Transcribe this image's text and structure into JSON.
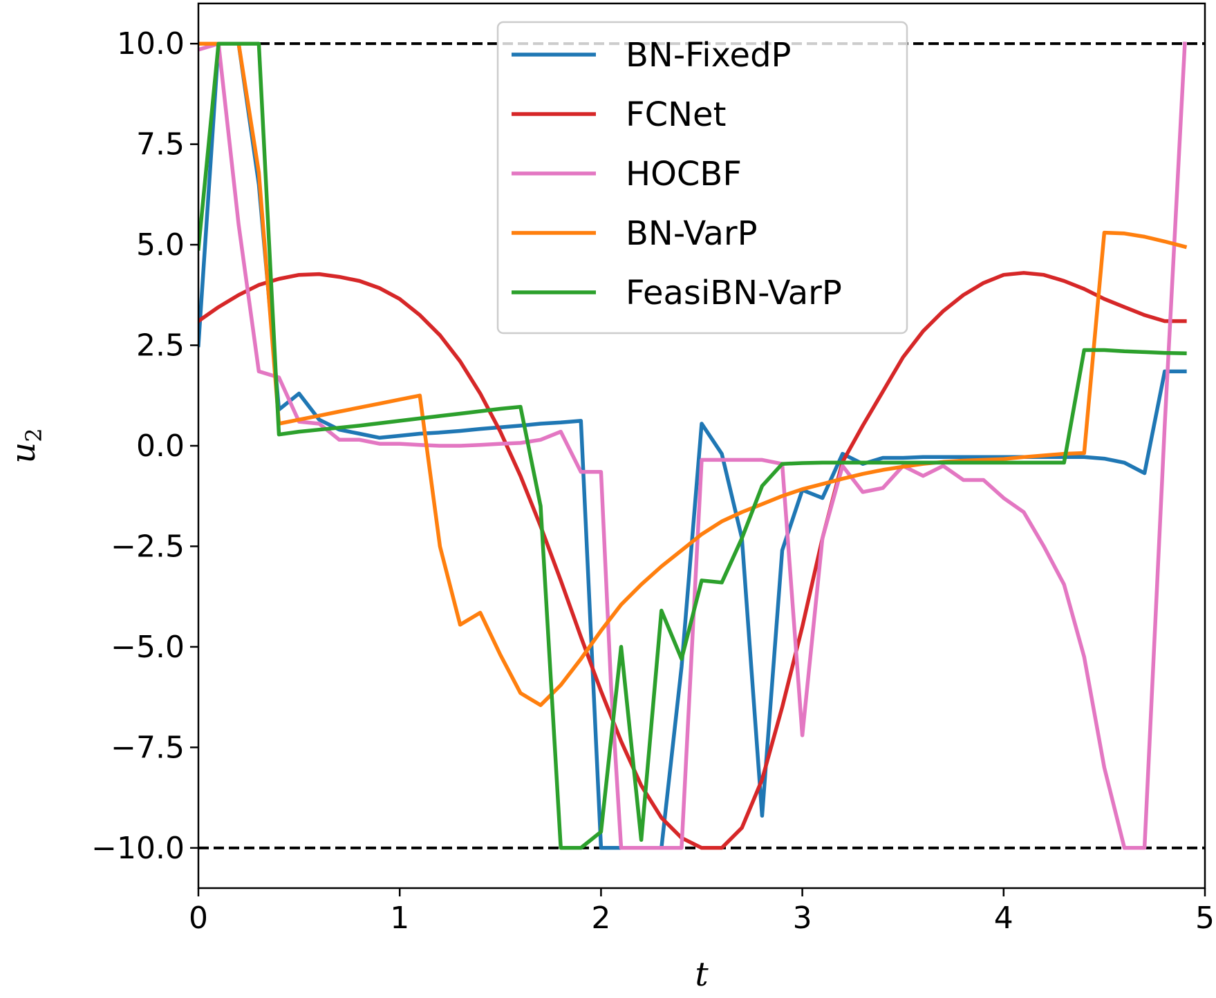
{
  "chart_data": {
    "type": "line",
    "xlabel": "t",
    "ylabel": "u",
    "ylabel_sub": "2",
    "xlim": [
      0,
      5
    ],
    "ylim": [
      -11,
      11
    ],
    "x_ticks": [
      0,
      1,
      2,
      3,
      4,
      5
    ],
    "x_tick_labels": [
      "0",
      "1",
      "2",
      "3",
      "4",
      "5"
    ],
    "y_ticks": [
      10.0,
      7.5,
      5.0,
      2.5,
      0.0,
      -2.5,
      -5.0,
      -7.5,
      -10.0
    ],
    "y_tick_labels": [
      "10.0",
      "7.5",
      "5.0",
      "2.5",
      "0.0",
      "−2.5",
      "−5.0",
      "−7.5",
      "−10.0"
    ],
    "reference_lines": [
      {
        "y": 10,
        "style": "dashed",
        "color": "#000000"
      },
      {
        "y": -10,
        "style": "dashed",
        "color": "#000000"
      }
    ],
    "legend_position": "top-center",
    "grid": false,
    "series": [
      {
        "name": "BN-FixedP",
        "color": "#1f77b4",
        "x": [
          0,
          0.1,
          0.2,
          0.3,
          0.4,
          0.5,
          0.6,
          0.7,
          0.8,
          0.9,
          1.0,
          1.1,
          1.2,
          1.3,
          1.4,
          1.5,
          1.6,
          1.7,
          1.8,
          1.9,
          2.0,
          2.1,
          2.2,
          2.3,
          2.4,
          2.5,
          2.6,
          2.7,
          2.8,
          2.9,
          3.0,
          3.1,
          3.2,
          3.3,
          3.4,
          3.5,
          3.6,
          3.7,
          3.8,
          3.9,
          4.0,
          4.1,
          4.2,
          4.3,
          4.4,
          4.5,
          4.6,
          4.7,
          4.8,
          4.9
        ],
        "y": [
          2.5,
          10,
          10,
          6.5,
          0.9,
          1.3,
          0.65,
          0.4,
          0.3,
          0.2,
          0.25,
          0.3,
          0.33,
          0.37,
          0.42,
          0.46,
          0.5,
          0.55,
          0.58,
          0.62,
          -10,
          -10,
          -10,
          -10,
          -5.5,
          0.55,
          -0.2,
          -2.3,
          -9.2,
          -2.6,
          -1.1,
          -1.3,
          -0.2,
          -0.45,
          -0.3,
          -0.3,
          -0.28,
          -0.28,
          -0.28,
          -0.28,
          -0.28,
          -0.28,
          -0.28,
          -0.28,
          -0.28,
          -0.32,
          -0.42,
          -0.68,
          1.85,
          1.85
        ]
      },
      {
        "name": "FCNet",
        "color": "#d62728",
        "x": [
          0,
          0.1,
          0.2,
          0.3,
          0.4,
          0.5,
          0.6,
          0.7,
          0.8,
          0.9,
          1.0,
          1.1,
          1.2,
          1.3,
          1.4,
          1.5,
          1.6,
          1.7,
          1.8,
          1.9,
          2.0,
          2.1,
          2.2,
          2.3,
          2.4,
          2.5,
          2.6,
          2.7,
          2.8,
          2.9,
          3.0,
          3.1,
          3.2,
          3.3,
          3.4,
          3.5,
          3.6,
          3.7,
          3.8,
          3.9,
          4.0,
          4.1,
          4.2,
          4.3,
          4.4,
          4.5,
          4.6,
          4.7,
          4.8,
          4.9
        ],
        "y": [
          3.1,
          3.45,
          3.75,
          4.0,
          4.15,
          4.25,
          4.27,
          4.2,
          4.1,
          3.92,
          3.65,
          3.25,
          2.75,
          2.1,
          1.3,
          0.35,
          -0.75,
          -2.0,
          -3.35,
          -4.75,
          -6.1,
          -7.35,
          -8.45,
          -9.25,
          -9.75,
          -10,
          -10,
          -9.5,
          -8.3,
          -6.5,
          -4.5,
          -2.3,
          -0.4,
          0.5,
          1.35,
          2.2,
          2.85,
          3.35,
          3.75,
          4.05,
          4.25,
          4.3,
          4.25,
          4.1,
          3.9,
          3.65,
          3.45,
          3.25,
          3.1,
          3.1
        ]
      },
      {
        "name": "HOCBF",
        "color": "#e377c2",
        "x": [
          0,
          0.1,
          0.2,
          0.3,
          0.4,
          0.5,
          0.6,
          0.7,
          0.8,
          0.9,
          1.0,
          1.1,
          1.2,
          1.3,
          1.4,
          1.5,
          1.6,
          1.7,
          1.8,
          1.9,
          1.95,
          2.0,
          2.05,
          2.1,
          2.2,
          2.3,
          2.4,
          2.5,
          2.6,
          2.7,
          2.8,
          2.9,
          3.0,
          3.1,
          3.2,
          3.3,
          3.4,
          3.5,
          3.6,
          3.7,
          3.8,
          3.9,
          4.0,
          4.1,
          4.2,
          4.3,
          4.4,
          4.5,
          4.6,
          4.7,
          4.8,
          4.9
        ],
        "y": [
          9.85,
          10,
          5.5,
          1.85,
          1.7,
          0.6,
          0.55,
          0.15,
          0.15,
          0.05,
          0.05,
          0.02,
          0.0,
          0.0,
          0.02,
          0.05,
          0.07,
          0.15,
          0.35,
          -0.65,
          -0.65,
          -0.65,
          -6.0,
          -10,
          -10,
          -10,
          -10,
          -0.35,
          -0.35,
          -0.35,
          -0.35,
          -0.45,
          -7.2,
          -2.3,
          -0.5,
          -1.15,
          -1.05,
          -0.5,
          -0.75,
          -0.5,
          -0.85,
          -0.85,
          -1.3,
          -1.65,
          -2.5,
          -3.45,
          -5.25,
          -8.0,
          -10,
          -10,
          0.5,
          10
        ]
      },
      {
        "name": "BN-VarP",
        "color": "#ff7f0e",
        "x": [
          0,
          0.1,
          0.2,
          0.3,
          0.4,
          0.5,
          0.6,
          0.7,
          0.8,
          0.9,
          1.0,
          1.1,
          1.2,
          1.3,
          1.4,
          1.5,
          1.6,
          1.7,
          1.8,
          1.9,
          2.0,
          2.1,
          2.2,
          2.3,
          2.4,
          2.5,
          2.6,
          2.7,
          2.8,
          2.9,
          3.0,
          3.1,
          3.2,
          3.3,
          3.4,
          3.5,
          3.6,
          3.7,
          3.8,
          3.9,
          4.0,
          4.1,
          4.2,
          4.3,
          4.4,
          4.5,
          4.6,
          4.7,
          4.8,
          4.9
        ],
        "y": [
          10,
          10,
          10,
          6.8,
          0.55,
          0.65,
          0.75,
          0.85,
          0.95,
          1.05,
          1.15,
          1.25,
          -2.5,
          -4.45,
          -4.15,
          -5.2,
          -6.15,
          -6.45,
          -5.95,
          -5.3,
          -4.6,
          -3.95,
          -3.45,
          -3.0,
          -2.6,
          -2.2,
          -1.88,
          -1.65,
          -1.45,
          -1.25,
          -1.08,
          -0.95,
          -0.82,
          -0.7,
          -0.6,
          -0.52,
          -0.45,
          -0.4,
          -0.37,
          -0.35,
          -0.33,
          -0.28,
          -0.24,
          -0.2,
          -0.18,
          5.3,
          5.28,
          5.2,
          5.08,
          4.95
        ]
      },
      {
        "name": "FeasiBN-VarP",
        "color": "#2ca02c",
        "x": [
          0,
          0.1,
          0.2,
          0.3,
          0.4,
          0.5,
          0.6,
          0.7,
          0.8,
          0.9,
          1.0,
          1.1,
          1.2,
          1.3,
          1.4,
          1.5,
          1.6,
          1.7,
          1.8,
          1.9,
          2.0,
          2.1,
          2.2,
          2.3,
          2.4,
          2.5,
          2.6,
          2.7,
          2.8,
          2.9,
          3.0,
          3.1,
          3.2,
          3.3,
          3.4,
          3.5,
          3.6,
          3.7,
          3.8,
          3.9,
          4.0,
          4.1,
          4.2,
          4.3,
          4.4,
          4.5,
          4.6,
          4.7,
          4.8,
          4.9
        ],
        "y": [
          4.9,
          10,
          10,
          10,
          0.28,
          0.35,
          0.4,
          0.45,
          0.5,
          0.56,
          0.62,
          0.68,
          0.74,
          0.8,
          0.86,
          0.92,
          0.97,
          -1.5,
          -10,
          -10,
          -9.6,
          -5.0,
          -9.8,
          -4.1,
          -5.3,
          -3.35,
          -3.4,
          -2.3,
          -1.0,
          -0.45,
          -0.43,
          -0.42,
          -0.42,
          -0.42,
          -0.42,
          -0.42,
          -0.42,
          -0.42,
          -0.42,
          -0.42,
          -0.42,
          -0.42,
          -0.42,
          -0.42,
          2.38,
          2.38,
          2.35,
          2.33,
          2.31,
          2.3
        ]
      }
    ]
  }
}
